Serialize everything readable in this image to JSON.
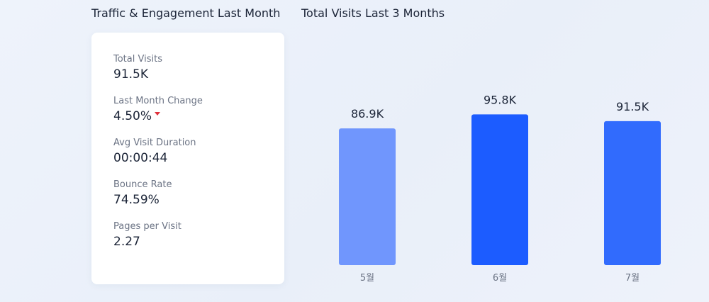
{
  "left_panel": {
    "title": "Traffic & Engagement Last Month",
    "stats": [
      {
        "label": "Total Visits",
        "value": "91.5K"
      },
      {
        "label": "Last Month Change",
        "value": "4.50%",
        "trend": "down"
      },
      {
        "label": "Avg Visit Duration",
        "value": "00:00:44"
      },
      {
        "label": "Bounce Rate",
        "value": "74.59%"
      },
      {
        "label": "Pages per Visit",
        "value": "2.27"
      }
    ],
    "trend_down_color": "#e0323c"
  },
  "chart_panel": {
    "title": "Total Visits Last 3 Months"
  },
  "chart_data": {
    "type": "bar",
    "title": "Total Visits Last 3 Months",
    "categories": [
      "5월",
      "6월",
      "7월"
    ],
    "values": [
      86.9,
      95.8,
      91.5
    ],
    "value_labels": [
      "86.9K",
      "95.8K",
      "91.5K"
    ],
    "unit": "K",
    "ylim": [
      0,
      100
    ],
    "grid": false,
    "xlabel": "",
    "ylabel": "",
    "colors": [
      "#7096fd",
      "#1c5cff",
      "#316bfd"
    ]
  }
}
